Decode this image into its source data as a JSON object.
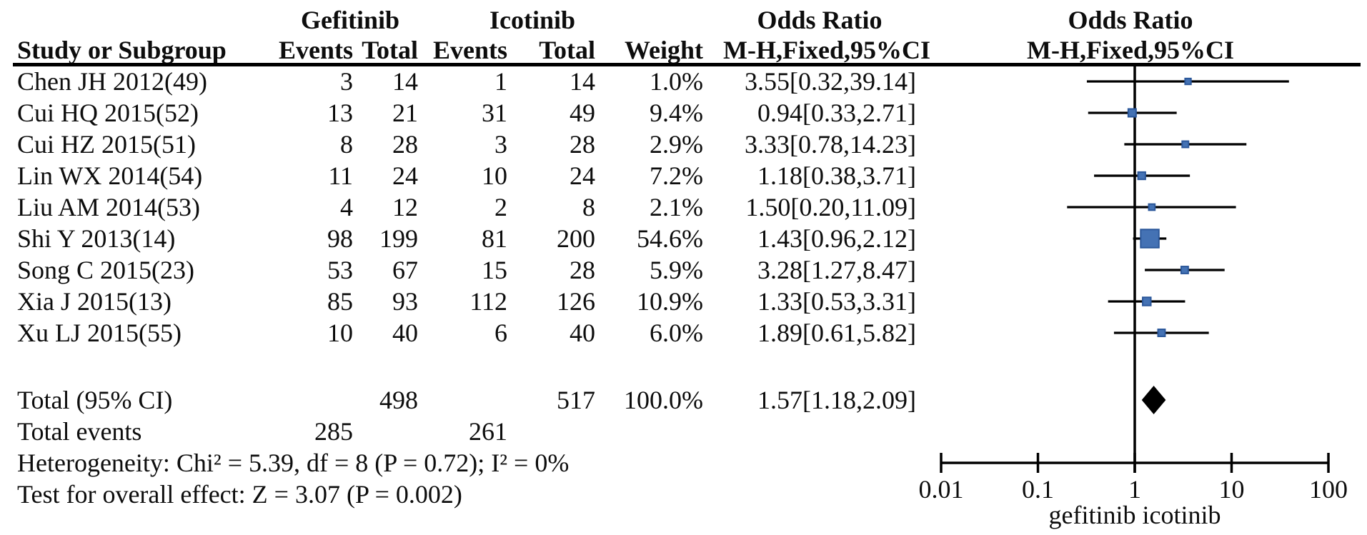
{
  "header": {
    "group_gefitinib": "Gefitinib",
    "group_icotinib": "Icotinib",
    "or_title": "Odds Ratio",
    "or_subtitle": "M-H,Fixed,95%CI",
    "plot_title": "Odds Ratio",
    "plot_subtitle": "M-H,Fixed,95%CI",
    "col_study": "Study or Subgroup",
    "col_events_g": "Events",
    "col_total_g": "Total",
    "col_events_i": "Events",
    "col_total_i": "Total",
    "col_weight": "Weight"
  },
  "chart_data": {
    "type": "scatter",
    "subtype": "forest-plot",
    "title": "Odds Ratio M-H,Fixed,95%CI",
    "x_scale": "log10",
    "xlim": [
      0.01,
      100
    ],
    "x_ticks": [
      0.01,
      0.1,
      1,
      10,
      100
    ],
    "x_tick_labels": [
      "0.01",
      "0.1",
      "1",
      "10",
      "100"
    ],
    "xlabel": "gefitinib icotinib",
    "legend_position": "none",
    "grid": false,
    "marker_color": "#4472b4",
    "marker_border": "#2b579a",
    "line_color": "#000000",
    "studies": [
      {
        "name": "Chen JH 2012(49)",
        "g_events": 3,
        "g_total": 14,
        "i_events": 1,
        "i_total": 14,
        "weight": "1.0%",
        "weight_pct": 1.0,
        "or": 3.55,
        "ci_low": 0.32,
        "ci_high": 39.14,
        "ci_text": "3.55[0.32,39.14]"
      },
      {
        "name": "Cui HQ 2015(52)",
        "g_events": 13,
        "g_total": 21,
        "i_events": 31,
        "i_total": 49,
        "weight": "9.4%",
        "weight_pct": 9.4,
        "or": 0.94,
        "ci_low": 0.33,
        "ci_high": 2.71,
        "ci_text": "0.94[0.33,2.71]"
      },
      {
        "name": "Cui HZ 2015(51)",
        "g_events": 8,
        "g_total": 28,
        "i_events": 3,
        "i_total": 28,
        "weight": "2.9%",
        "weight_pct": 2.9,
        "or": 3.33,
        "ci_low": 0.78,
        "ci_high": 14.23,
        "ci_text": "3.33[0.78,14.23]"
      },
      {
        "name": "Lin WX 2014(54)",
        "g_events": 11,
        "g_total": 24,
        "i_events": 10,
        "i_total": 24,
        "weight": "7.2%",
        "weight_pct": 7.2,
        "or": 1.18,
        "ci_low": 0.38,
        "ci_high": 3.71,
        "ci_text": "1.18[0.38,3.71]"
      },
      {
        "name": "Liu AM 2014(53)",
        "g_events": 4,
        "g_total": 12,
        "i_events": 2,
        "i_total": 8,
        "weight": "2.1%",
        "weight_pct": 2.1,
        "or": 1.5,
        "ci_low": 0.2,
        "ci_high": 11.09,
        "ci_text": "1.50[0.20,11.09]"
      },
      {
        "name": "Shi Y 2013(14)",
        "g_events": 98,
        "g_total": 199,
        "i_events": 81,
        "i_total": 200,
        "weight": "54.6%",
        "weight_pct": 54.6,
        "or": 1.43,
        "ci_low": 0.96,
        "ci_high": 2.12,
        "ci_text": "1.43[0.96,2.12]"
      },
      {
        "name": "Song C 2015(23)",
        "g_events": 53,
        "g_total": 67,
        "i_events": 15,
        "i_total": 28,
        "weight": "5.9%",
        "weight_pct": 5.9,
        "or": 3.28,
        "ci_low": 1.27,
        "ci_high": 8.47,
        "ci_text": "3.28[1.27,8.47]"
      },
      {
        "name": "Xia J 2015(13)",
        "g_events": 85,
        "g_total": 93,
        "i_events": 112,
        "i_total": 126,
        "weight": "10.9%",
        "weight_pct": 10.9,
        "or": 1.33,
        "ci_low": 0.53,
        "ci_high": 3.31,
        "ci_text": "1.33[0.53,3.31]"
      },
      {
        "name": "Xu LJ 2015(55)",
        "g_events": 10,
        "g_total": 40,
        "i_events": 6,
        "i_total": 40,
        "weight": "6.0%",
        "weight_pct": 6.0,
        "or": 1.89,
        "ci_low": 0.61,
        "ci_high": 5.82,
        "ci_text": "1.89[0.61,5.82]"
      }
    ],
    "total": {
      "label": "Total (95% CI)",
      "g_total": "498",
      "i_total": "517",
      "weight": "100.0%",
      "or": 1.57,
      "ci_low": 1.18,
      "ci_high": 2.09,
      "ci_text": "1.57[1.18,2.09]"
    },
    "total_events": {
      "label": "Total events",
      "g_events": "285",
      "i_events": "261"
    },
    "heterogeneity": "Heterogeneity: Chi² = 5.39, df = 8 (P = 0.72); I² = 0%",
    "overall_effect": "Test for overall effect: Z = 3.07 (P = 0.002)"
  }
}
